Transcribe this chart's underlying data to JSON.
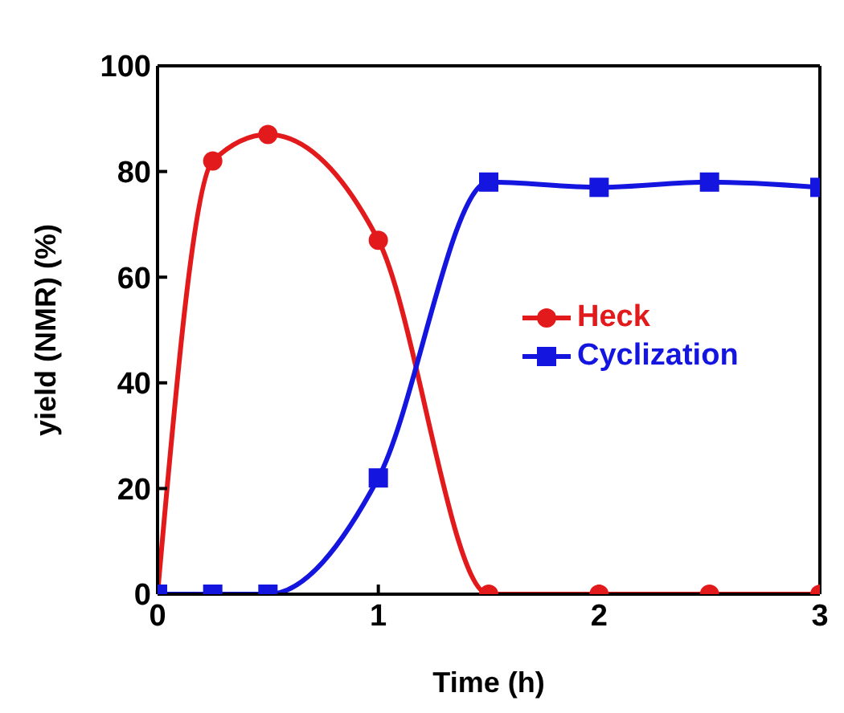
{
  "chart_data": {
    "type": "line",
    "xlabel": "Time (h)",
    "ylabel": "yield (NMR) (%)",
    "xlim": [
      0,
      3
    ],
    "xticks": [
      0,
      1,
      2,
      3
    ],
    "ylim": [
      0,
      100
    ],
    "yticks": [
      0,
      20,
      40,
      60,
      80,
      100
    ],
    "legend": "right",
    "series": [
      {
        "name": "Heck",
        "color": "#e31a1c",
        "marker": "circle",
        "x": [
          0,
          0.25,
          0.5,
          1,
          1.5,
          2,
          2.5,
          3
        ],
        "values": [
          0,
          82,
          87,
          67,
          0,
          0,
          0,
          0
        ]
      },
      {
        "name": "Cyclization",
        "color": "#1515e0",
        "marker": "square",
        "x": [
          0,
          0.25,
          0.5,
          1,
          1.5,
          2,
          2.5,
          3
        ],
        "values": [
          0,
          0,
          0,
          22,
          78,
          77,
          78,
          77
        ]
      }
    ]
  }
}
